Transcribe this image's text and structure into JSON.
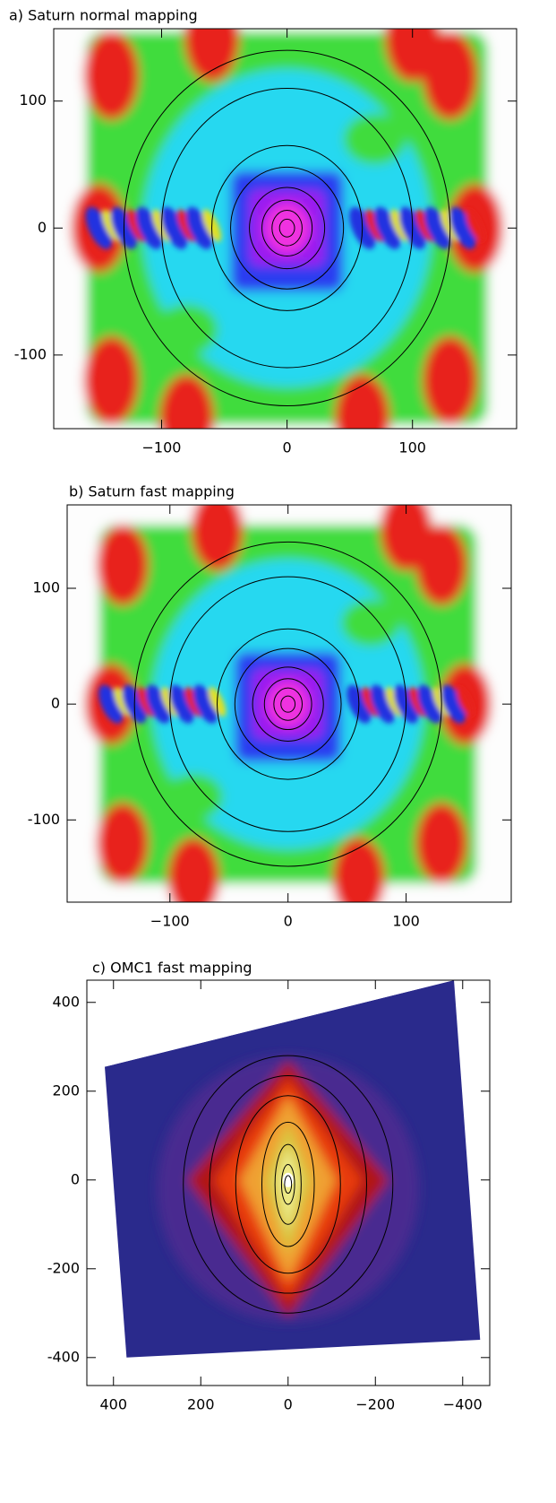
{
  "chart_data": [
    {
      "type": "image",
      "title": "a) Saturn normal mapping",
      "xlim": [
        -186,
        183
      ],
      "ylim": [
        -158,
        157
      ],
      "xticks": [
        {
          "value": -100,
          "label": "−100"
        },
        0,
        100
      ],
      "yticks": [
        -100,
        0,
        100
      ]
    },
    {
      "type": "image",
      "title": "b) Saturn fast mapping",
      "xlim": [
        -187,
        189
      ],
      "ylim": [
        -171,
        172
      ],
      "xticks": [
        {
          "value": -100,
          "label": "−100"
        },
        0,
        100
      ],
      "yticks": [
        -100,
        0,
        100
      ]
    },
    {
      "type": "image",
      "title": "c) OMC1 fast mapping",
      "xlim": [
        461,
        -462
      ],
      "ylim": [
        -463,
        450
      ],
      "xticks": [
        400,
        200,
        0,
        {
          "value": -200,
          "label": "−200"
        },
        {
          "value": -400,
          "label": "−400"
        }
      ],
      "yticks": [
        -400,
        -200,
        0,
        200,
        400
      ]
    }
  ]
}
